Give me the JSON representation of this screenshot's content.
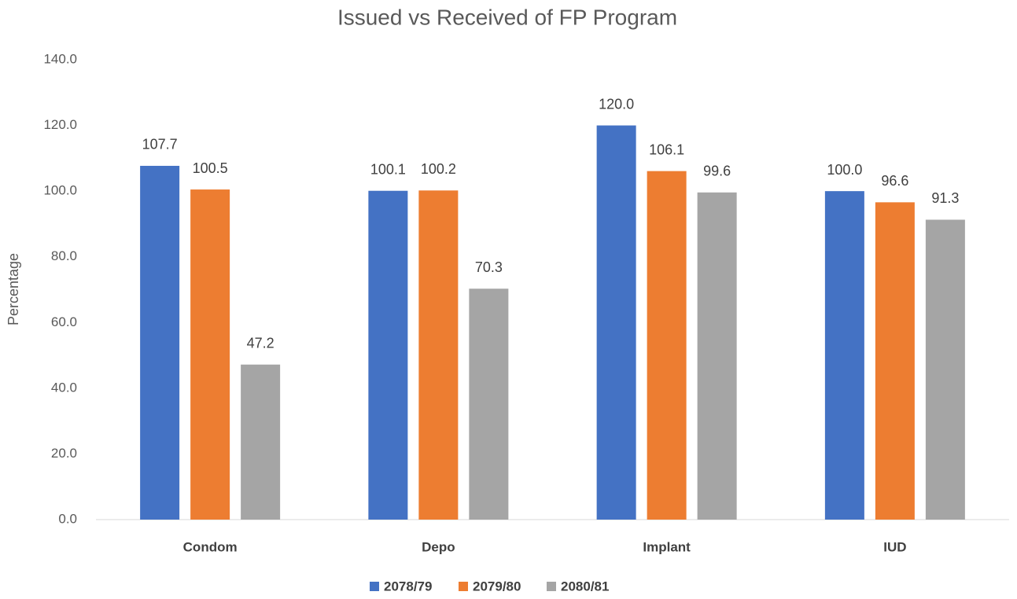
{
  "chart_data": {
    "type": "bar",
    "title": "Issued vs Received of FP Program",
    "y_label": "Percentage",
    "categories": [
      "Condom",
      "Depo",
      "Implant",
      "IUD"
    ],
    "series": [
      {
        "name": "2078/79",
        "color": "#4472c4",
        "values": [
          107.7,
          100.1,
          120,
          100
        ],
        "value_labels": [
          "107.7",
          "100.1",
          "120.0",
          "100.0"
        ]
      },
      {
        "name": "2079/80",
        "color": "#ed7d31",
        "values": [
          100.5,
          100.2,
          106.1,
          96.6
        ],
        "value_labels": [
          "100.5",
          "100.2",
          "106.1",
          "96.6"
        ]
      },
      {
        "name": "2080/81",
        "color": "#a5a5a5",
        "values": [
          47.2,
          70.3,
          99.6,
          91.3
        ],
        "value_labels": [
          "47.2",
          "70.3",
          "99.6",
          "91.3"
        ]
      }
    ],
    "ylim": [
      0,
      140
    ],
    "yticks": [
      {
        "value": 0,
        "label": "0.0"
      },
      {
        "value": 20,
        "label": "20.0"
      },
      {
        "value": 40,
        "label": "40.0"
      },
      {
        "value": 60,
        "label": "60.0"
      },
      {
        "value": 80,
        "label": "80.0"
      },
      {
        "value": 100,
        "label": "100.0"
      },
      {
        "value": 120,
        "label": "120.0"
      },
      {
        "value": 140,
        "label": "140.0"
      }
    ],
    "grid": false,
    "legend": "bottom"
  }
}
